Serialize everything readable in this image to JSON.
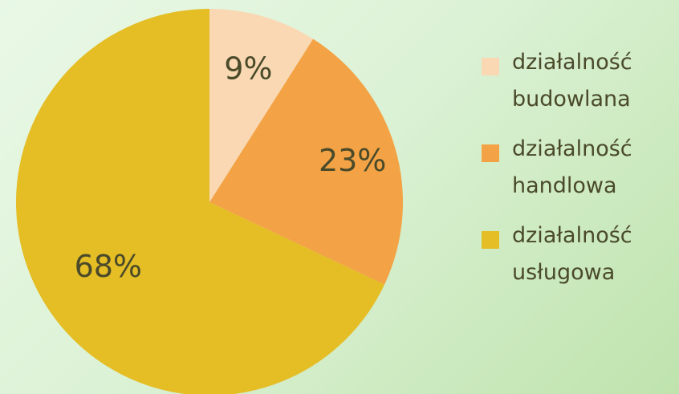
{
  "chart_data": {
    "type": "pie",
    "title": "",
    "slices": [
      {
        "name": "działalność budowlana",
        "value": 9,
        "label": "9%",
        "color": "#fad8b4"
      },
      {
        "name": "działalność handlowa",
        "value": 23,
        "label": "23%",
        "color": "#f3a345"
      },
      {
        "name": "działalność usługowa",
        "value": 68,
        "label": "68%",
        "color": "#e5bd25"
      }
    ],
    "legend_position": "right"
  },
  "legend": {
    "items": [
      {
        "label": "działalność\nbudowlana",
        "color": "#fad8b4"
      },
      {
        "label": "działalność\nhandlowa",
        "color": "#f3a345"
      },
      {
        "label": "działalność\nusługowa",
        "color": "#e5bd25"
      }
    ]
  }
}
